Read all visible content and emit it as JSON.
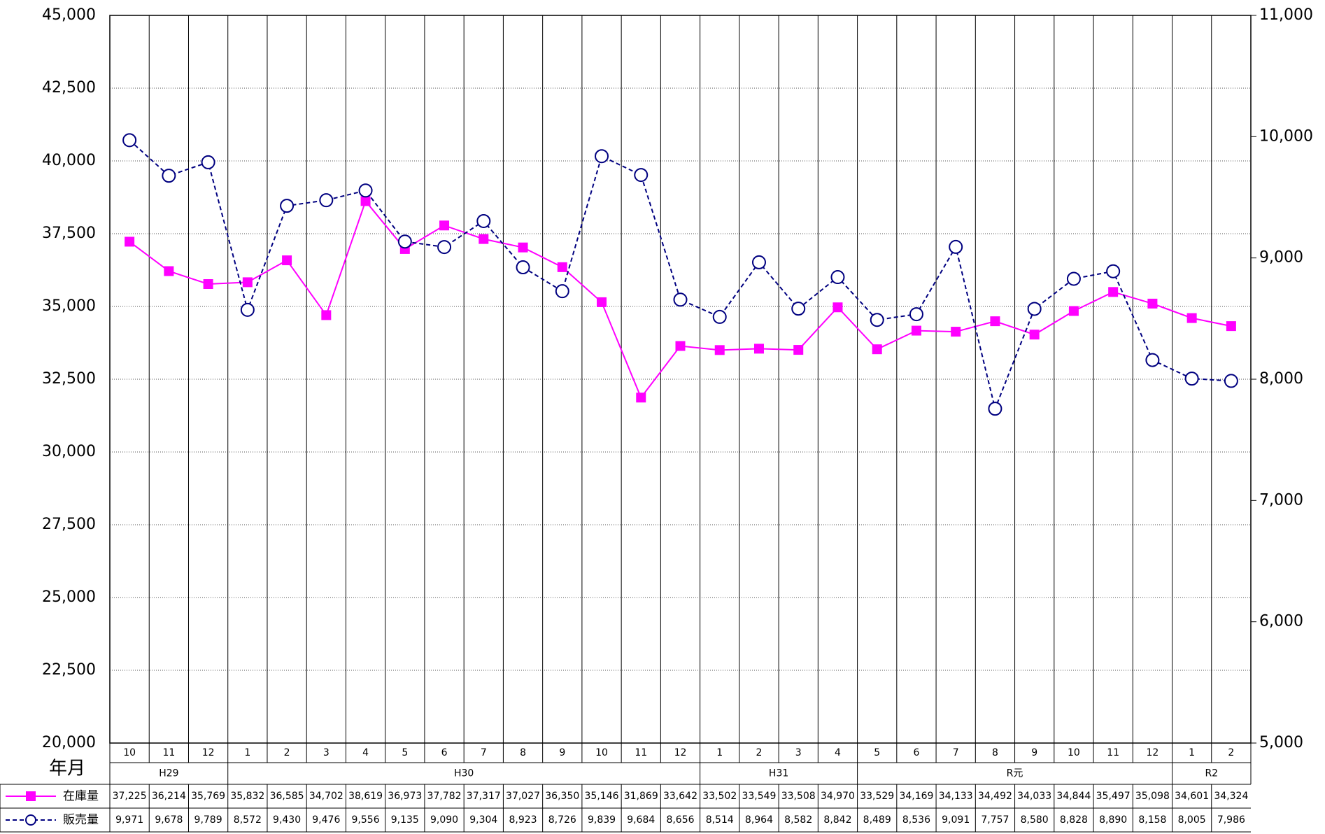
{
  "chart_data": {
    "type": "line",
    "x_label": "年月",
    "categories": [
      "10",
      "11",
      "12",
      "1",
      "2",
      "3",
      "4",
      "5",
      "6",
      "7",
      "8",
      "9",
      "10",
      "11",
      "12",
      "1",
      "2",
      "3",
      "4",
      "5",
      "6",
      "7",
      "8",
      "9",
      "10",
      "11",
      "12",
      "1",
      "2"
    ],
    "era_labels": [
      "H29",
      null,
      null,
      "H30",
      null,
      null,
      null,
      null,
      null,
      null,
      null,
      null,
      null,
      null,
      null,
      "H31",
      null,
      null,
      null,
      "R元",
      null,
      null,
      null,
      null,
      null,
      null,
      null,
      "R2",
      null
    ],
    "series": [
      {
        "name": "在庫量",
        "color": "#ff00ff",
        "marker": "square",
        "axis": "y",
        "values": [
          37225,
          36214,
          35769,
          35832,
          36585,
          34702,
          38619,
          36973,
          37782,
          37317,
          37027,
          36350,
          35146,
          31869,
          33642,
          33502,
          33549,
          33508,
          34970,
          33529,
          34169,
          34133,
          34492,
          34033,
          34844,
          35497,
          35098,
          34601,
          34324
        ],
        "value_labels": [
          "37,225",
          "36,214",
          "35,769",
          "35,832",
          "36,585",
          "34,702",
          "38,619",
          "36,973",
          "37,782",
          "37,317",
          "37,027",
          "36,350",
          "35,146",
          "31,869",
          "33,642",
          "33,502",
          "33,549",
          "33,508",
          "34,970",
          "33,529",
          "34,169",
          "34,133",
          "34,492",
          "34,033",
          "34,844",
          "35,497",
          "35,098",
          "34,601",
          "34,324"
        ]
      },
      {
        "name": "販売量",
        "color": "#000080",
        "marker": "circle",
        "dashed": true,
        "axis": "y2",
        "values": [
          9971,
          9678,
          9789,
          8572,
          9430,
          9476,
          9556,
          9135,
          9090,
          9304,
          8923,
          8726,
          9839,
          9684,
          8656,
          8514,
          8964,
          8582,
          8842,
          8489,
          8536,
          9091,
          7757,
          8580,
          8828,
          8890,
          8158,
          8005,
          7986
        ],
        "value_labels": [
          "9,971",
          "9,678",
          "9,789",
          "8,572",
          "9,430",
          "9,476",
          "9,556",
          "9,135",
          "9,090",
          "9,304",
          "8,923",
          "8,726",
          "9,839",
          "9,684",
          "8,656",
          "8,514",
          "8,964",
          "8,582",
          "8,842",
          "8,489",
          "8,536",
          "9,091",
          "7,757",
          "8,580",
          "8,828",
          "8,890",
          "8,158",
          "8,005",
          "7,986"
        ]
      }
    ],
    "ylim": [
      20000,
      45000
    ],
    "yticks": [
      {
        "value": 20000,
        "label": "20,000"
      },
      {
        "value": 22500,
        "label": "22,500"
      },
      {
        "value": 25000,
        "label": "25,000"
      },
      {
        "value": 27500,
        "label": "27,500"
      },
      {
        "value": 30000,
        "label": "30,000"
      },
      {
        "value": 32500,
        "label": "32,500"
      },
      {
        "value": 35000,
        "label": "35,000"
      },
      {
        "value": 37500,
        "label": "37,500"
      },
      {
        "value": 40000,
        "label": "40,000"
      },
      {
        "value": 42500,
        "label": "42,500"
      },
      {
        "value": 45000,
        "label": "45,000"
      }
    ],
    "y2lim": [
      5000,
      11000
    ],
    "y2ticks": [
      {
        "value": 5000,
        "label": "5,000"
      },
      {
        "value": 6000,
        "label": "6,000"
      },
      {
        "value": 7000,
        "label": "7,000"
      },
      {
        "value": 8000,
        "label": "8,000"
      },
      {
        "value": 9000,
        "label": "9,000"
      },
      {
        "value": 10000,
        "label": "10,000"
      },
      {
        "value": 11000,
        "label": "11,000"
      }
    ],
    "grid": true
  }
}
